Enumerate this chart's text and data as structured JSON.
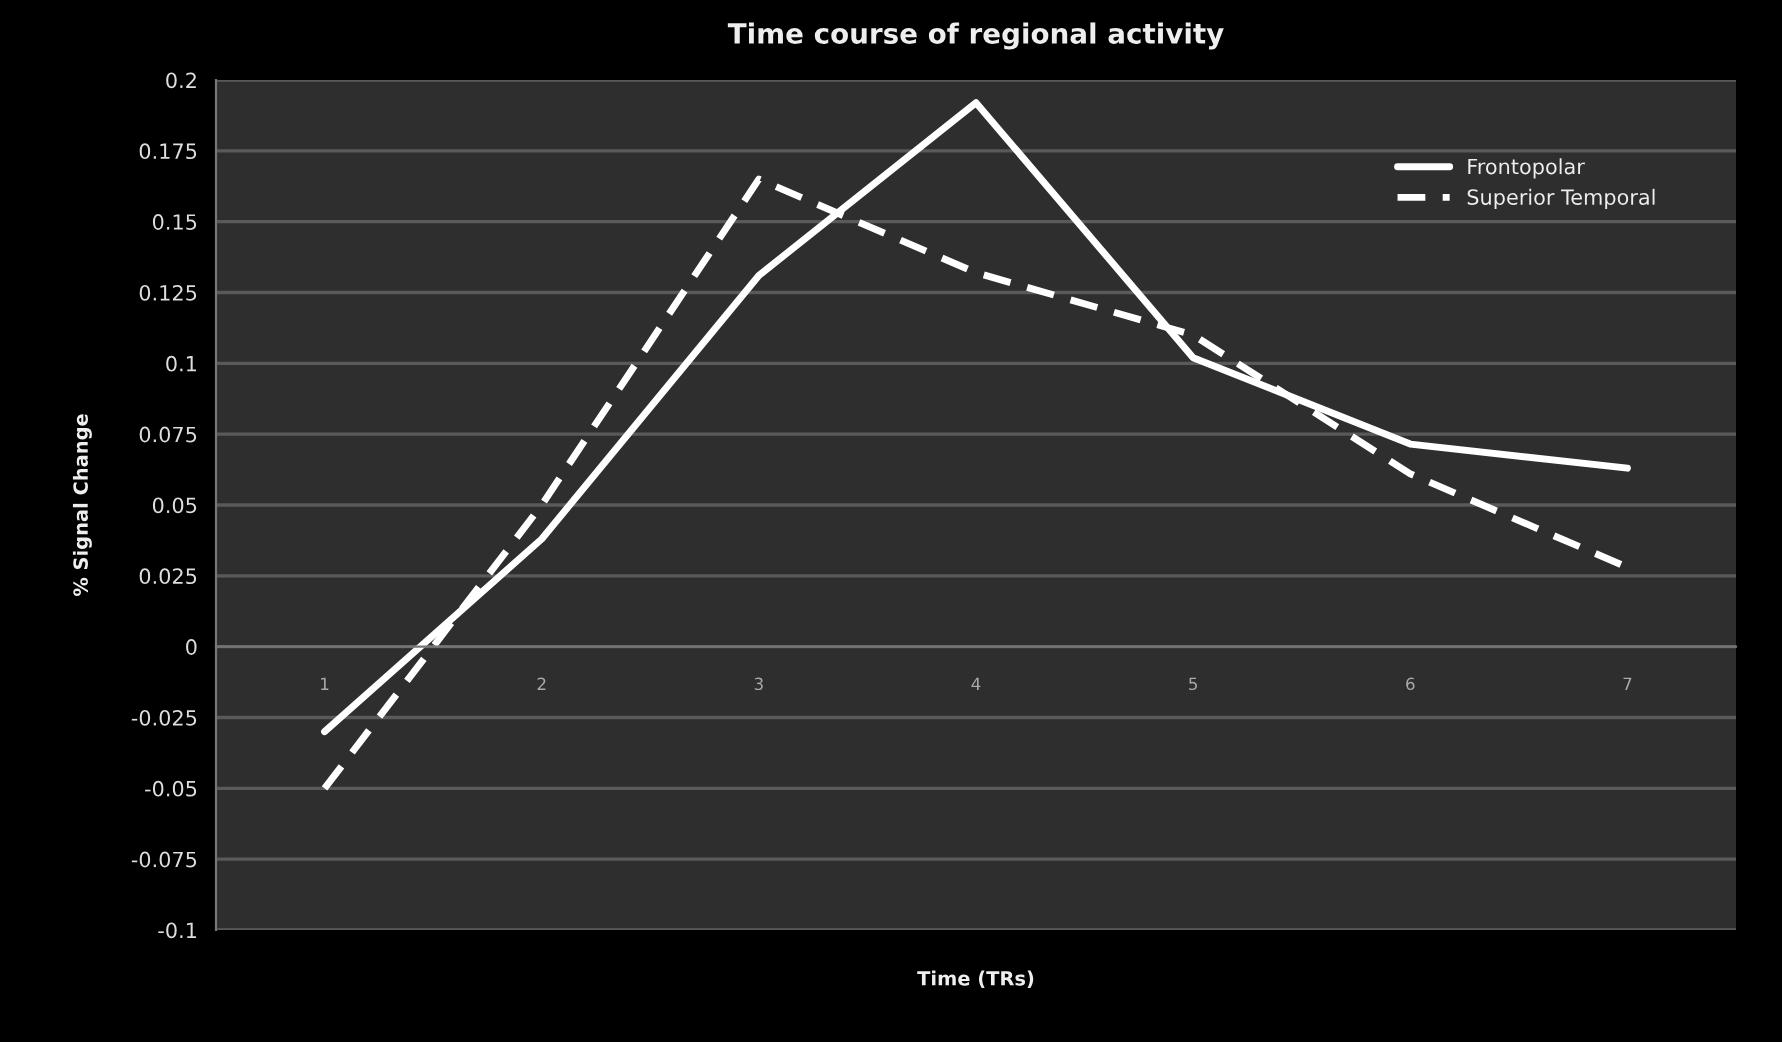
{
  "chart_data": {
    "type": "line",
    "title": "Time course of regional activity",
    "xlabel": "Time (TRs)",
    "ylabel": "% Signal Change",
    "categories": [
      "1",
      "2",
      "3",
      "4",
      "5",
      "6",
      "7"
    ],
    "series": [
      {
        "name": "Frontopolar",
        "color": "#ffffff",
        "line_style": "solid",
        "values": [
          -0.03,
          0.038,
          0.131,
          0.192,
          0.102,
          0.0715,
          0.063
        ]
      },
      {
        "name": "Superior Temporal",
        "color": "#ffffff",
        "line_style": "dashed",
        "values": [
          -0.05,
          0.05,
          0.165,
          0.132,
          0.11,
          0.061,
          0.028
        ]
      }
    ],
    "ylim": [
      -0.1,
      0.2
    ],
    "yticks": [
      -0.1,
      -0.075,
      -0.05,
      -0.025,
      0,
      0.025,
      0.05,
      0.075,
      0.1,
      0.125,
      0.15,
      0.175,
      0.2
    ],
    "grid": "y",
    "legend": "top right",
    "marker": "none"
  }
}
